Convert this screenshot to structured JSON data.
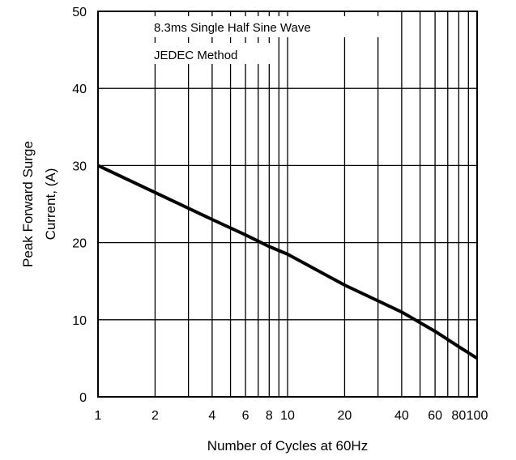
{
  "chart_data": {
    "type": "line",
    "ylabel_line1": "Peak Forward Surge",
    "ylabel_line2": "Current, (A)",
    "xlabel": "Number of Cycles at 60Hz",
    "xscale": "log",
    "xlim": [
      1,
      100
    ],
    "ylim": [
      0,
      50
    ],
    "grid": true,
    "x_ticks": [
      1,
      2,
      4,
      6,
      8,
      10,
      20,
      40,
      60,
      80,
      100
    ],
    "x_tick_labels": [
      "1",
      "2",
      "4",
      "6",
      "8",
      "10",
      "20",
      "40",
      "60",
      "80",
      "100"
    ],
    "x_grid": [
      2,
      3,
      4,
      5,
      6,
      7,
      8,
      9,
      10,
      20,
      30,
      40,
      50,
      60,
      70,
      80,
      90
    ],
    "y_ticks": [
      0,
      10,
      20,
      30,
      40,
      50
    ],
    "y_tick_labels": [
      "0",
      "10",
      "20",
      "30",
      "40",
      "50"
    ],
    "annotations": [
      "8.3ms Single Half Sine Wave",
      "JEDEC Method"
    ],
    "series": [
      {
        "x": [
          1,
          2,
          4,
          6,
          8,
          10,
          20,
          40,
          60,
          80,
          100
        ],
        "y": [
          30,
          26.5,
          23,
          21,
          19.5,
          18.5,
          14.5,
          11,
          8.5,
          6.5,
          5
        ]
      }
    ]
  }
}
